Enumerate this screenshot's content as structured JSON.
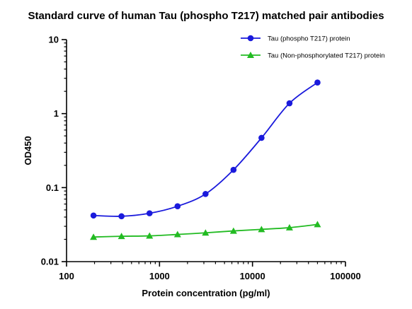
{
  "chart_data": {
    "type": "line",
    "title": "Standard curve of human Tau (phospho T217) matched pair antibodies",
    "xlabel": "Protein concentration (pg/ml)",
    "ylabel": "OD450",
    "xscale": "log",
    "yscale": "log",
    "xlim": [
      100,
      100000
    ],
    "ylim": [
      0.01,
      10
    ],
    "xticks": [
      100,
      1000,
      10000,
      100000
    ],
    "xtick_labels": [
      "100",
      "1000",
      "10000",
      "100000"
    ],
    "yticks": [
      0.01,
      0.1,
      1,
      10
    ],
    "ytick_labels": [
      "0.01",
      "0.1",
      "1",
      "10"
    ],
    "grid": false,
    "legend_position": "top-right",
    "series": [
      {
        "name": "Tau (phospho T217)  protein",
        "color": "#1a1adc",
        "marker": "circle",
        "fit": "smooth-curve",
        "x": [
          195,
          390,
          781,
          1563,
          3125,
          6250,
          12500,
          25000,
          50000
        ],
        "y": [
          0.042,
          0.041,
          0.045,
          0.056,
          0.082,
          0.174,
          0.47,
          1.38,
          2.63
        ]
      },
      {
        "name": "Tau (Non-phosphorylated T217) protein",
        "color": "#22bb22",
        "marker": "triangle",
        "fit": "smooth-curve",
        "x": [
          195,
          390,
          781,
          1563,
          3125,
          6250,
          12500,
          25000,
          50000
        ],
        "y": [
          0.0215,
          0.022,
          0.0223,
          0.0233,
          0.0245,
          0.026,
          0.0273,
          0.0288,
          0.0318
        ]
      }
    ]
  }
}
